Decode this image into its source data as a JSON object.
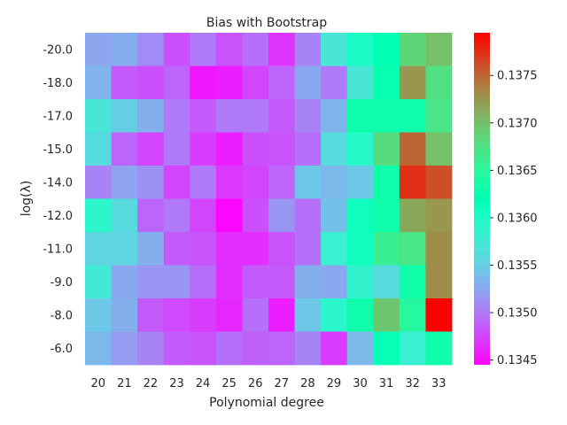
{
  "chart_data": {
    "type": "heatmap",
    "title": "Bias with Bootstrap",
    "xlabel": "Polynomial degree",
    "ylabel": "log(λ)",
    "x": [
      20,
      21,
      22,
      23,
      24,
      25,
      26,
      27,
      28,
      29,
      30,
      31,
      32,
      33
    ],
    "y": [
      "-20.0",
      "-18.0",
      "-17.0",
      "-15.0",
      "-14.0",
      "-12.0",
      "-11.0",
      "-9.0",
      "-8.0",
      "-6.0"
    ],
    "colorbar": {
      "colormap": "rainbow",
      "range": [
        0.13445,
        0.13795
      ],
      "ticks": [
        0.1345,
        0.135,
        0.1355,
        0.136,
        0.1365,
        0.137,
        0.1375
      ],
      "tick_labels": [
        "0.1345",
        "0.1350",
        "0.1355",
        "0.1360",
        "0.1365",
        "0.1370",
        "0.1375"
      ]
    },
    "values": [
      [
        0.13524,
        0.13528,
        0.1351,
        0.1348,
        0.135,
        0.13482,
        0.13495,
        0.13468,
        0.13505,
        0.1357,
        0.136,
        0.1362,
        0.13685,
        0.137
      ],
      [
        0.13532,
        0.13485,
        0.1348,
        0.1349,
        0.13455,
        0.13458,
        0.13475,
        0.1349,
        0.13525,
        0.135,
        0.1357,
        0.13625,
        0.13725,
        0.13675
      ],
      [
        0.1357,
        0.1355,
        0.1353,
        0.135,
        0.13485,
        0.135,
        0.135,
        0.13485,
        0.13505,
        0.13532,
        0.1363,
        0.1363,
        0.1363,
        0.1367
      ],
      [
        0.1356,
        0.1349,
        0.13475,
        0.135,
        0.13472,
        0.13458,
        0.1348,
        0.13482,
        0.13495,
        0.1356,
        0.13595,
        0.1368,
        0.1375,
        0.137
      ],
      [
        0.13505,
        0.13522,
        0.13512,
        0.13475,
        0.135,
        0.1347,
        0.13475,
        0.1349,
        0.13545,
        0.13535,
        0.13545,
        0.1363,
        0.13775,
        0.1376
      ],
      [
        0.1359,
        0.1356,
        0.1349,
        0.135,
        0.13475,
        0.13448,
        0.1348,
        0.13515,
        0.13495,
        0.1354,
        0.1361,
        0.1363,
        0.13715,
        0.13725
      ],
      [
        0.13555,
        0.13555,
        0.1353,
        0.13485,
        0.13482,
        0.13465,
        0.13465,
        0.13482,
        0.13495,
        0.1358,
        0.1361,
        0.1366,
        0.1367,
        0.1373
      ],
      [
        0.13575,
        0.13525,
        0.13515,
        0.13515,
        0.13495,
        0.13465,
        0.13485,
        0.13485,
        0.1353,
        0.13525,
        0.13585,
        0.1356,
        0.1363,
        0.1373
      ],
      [
        0.13545,
        0.1353,
        0.13485,
        0.13478,
        0.13472,
        0.13462,
        0.13495,
        0.13458,
        0.13545,
        0.1359,
        0.1363,
        0.13695,
        0.13645,
        0.13795
      ],
      [
        0.13535,
        0.13518,
        0.13505,
        0.13485,
        0.13482,
        0.13495,
        0.13488,
        0.1349,
        0.13505,
        0.13472,
        0.13535,
        0.13615,
        0.1358,
        0.1363
      ]
    ]
  }
}
